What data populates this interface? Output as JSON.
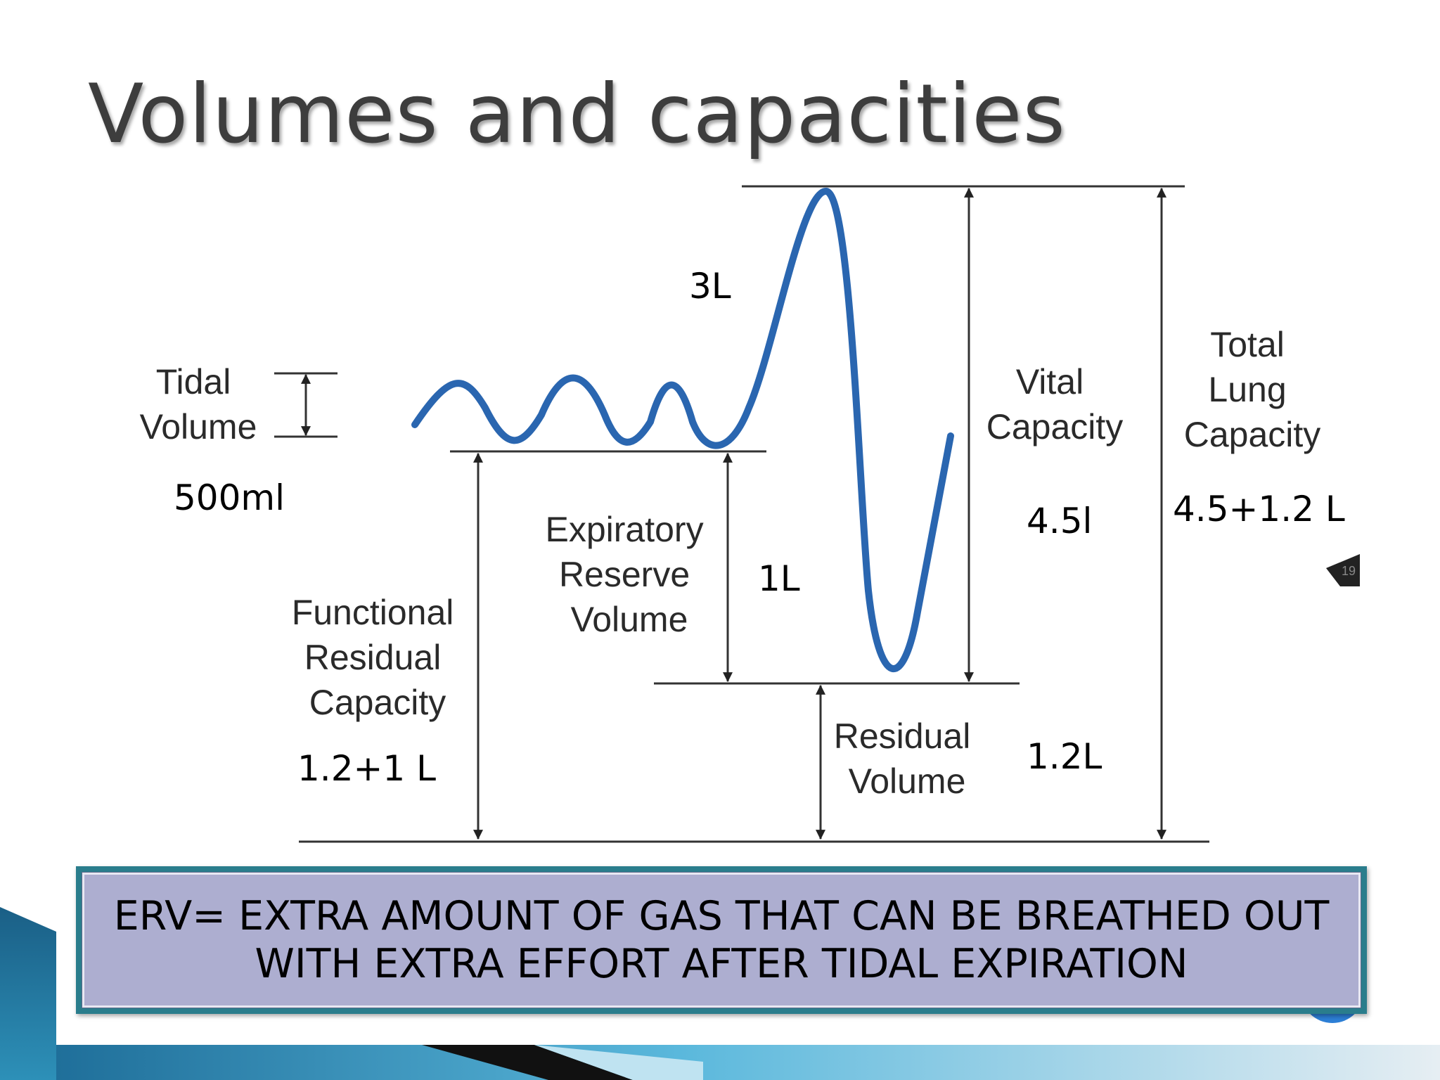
{
  "title": "Volumes and capacities",
  "labels": {
    "tidal_volume": [
      "Tidal",
      "Volume"
    ],
    "expiratory_reserve_volume": [
      "Expiratory",
      "Reserve",
      "Volume"
    ],
    "functional_residual_capacity": [
      "Functional",
      "Residual",
      "Capacity"
    ],
    "residual_volume": [
      "Residual",
      "Volume"
    ],
    "vital_capacity": [
      "Vital",
      "Capacity"
    ],
    "total_lung_capacity": [
      "Total",
      "Lung",
      "Capacity"
    ]
  },
  "annotations": {
    "tidal_volume_value": "500ml",
    "irv_value": "3L",
    "erv_value": "1L",
    "frc_value": "1.2+1 L",
    "vital_capacity_value": "4.5l",
    "residual_volume_value": "1.2L",
    "total_lung_capacity_value": "4.5+1.2 L"
  },
  "slide_number_badge": "19",
  "note": {
    "line1": "ERV= EXTRA AMOUNT OF GAS THAT CAN BE BREATHED OUT",
    "line2": "WITH EXTRA EFFORT AFTER TIDAL EXPIRATION"
  },
  "colors": {
    "trace": "#2a66b0",
    "note_frame": "#2a7d8c",
    "note_fill": "#adaed0",
    "footer_accent": "#2d90b8"
  }
}
